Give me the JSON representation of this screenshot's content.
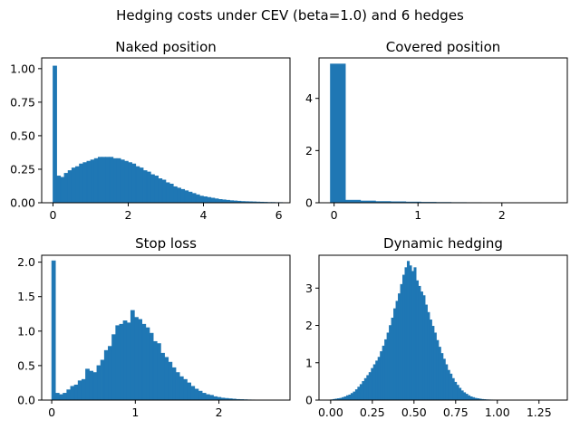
{
  "figure": {
    "title": "Hedging costs under CEV (beta=1.0) and 6 hedges",
    "background": "#ffffff",
    "bar_color": "#1f77b4"
  },
  "chart_data": [
    {
      "type": "bar",
      "title": "Naked position",
      "xlim": [
        -0.3,
        6.3
      ],
      "ylim": [
        0,
        1.08
      ],
      "xticks": [
        0,
        2,
        4,
        6
      ],
      "xtick_labels": [
        "0",
        "2",
        "4",
        "6"
      ],
      "yticks": [
        0,
        0.25,
        0.5,
        0.75,
        1.0
      ],
      "ytick_labels": [
        "0.00",
        "0.25",
        "0.50",
        "0.75",
        "1.00"
      ],
      "bin_start": 0.0,
      "bin_width": 0.1,
      "values": [
        1.02,
        0.2,
        0.19,
        0.22,
        0.24,
        0.26,
        0.27,
        0.29,
        0.3,
        0.31,
        0.32,
        0.33,
        0.34,
        0.34,
        0.34,
        0.34,
        0.33,
        0.33,
        0.32,
        0.31,
        0.3,
        0.29,
        0.27,
        0.26,
        0.24,
        0.23,
        0.21,
        0.2,
        0.18,
        0.17,
        0.15,
        0.14,
        0.12,
        0.11,
        0.1,
        0.09,
        0.08,
        0.07,
        0.06,
        0.05,
        0.045,
        0.04,
        0.035,
        0.03,
        0.025,
        0.022,
        0.019,
        0.016,
        0.014,
        0.012,
        0.01,
        0.009,
        0.008,
        0.007,
        0.006,
        0.005,
        0.004,
        0.003,
        0.003,
        0.002,
        0.002
      ]
    },
    {
      "type": "bar",
      "title": "Covered position",
      "xlim": [
        -0.18,
        2.78
      ],
      "ylim": [
        0,
        5.55
      ],
      "xticks": [
        0,
        1,
        2
      ],
      "xtick_labels": [
        "0",
        "1",
        "2"
      ],
      "yticks": [
        0,
        2,
        4
      ],
      "ytick_labels": [
        "0",
        "2",
        "4"
      ],
      "bin_start": -0.045,
      "bin_width": 0.18,
      "values": [
        5.32,
        0.1,
        0.07,
        0.05,
        0.04,
        0.03,
        0.02,
        0.015,
        0.01,
        0.008,
        0.006,
        0.005,
        0.004,
        0.003,
        0.002
      ]
    },
    {
      "type": "bar",
      "title": "Stop loss",
      "xlim": [
        -0.12,
        2.85
      ],
      "ylim": [
        0,
        2.1
      ],
      "xticks": [
        0,
        1,
        2
      ],
      "xtick_labels": [
        "0",
        "1",
        "2"
      ],
      "yticks": [
        0,
        0.5,
        1.0,
        1.5,
        2.0
      ],
      "ytick_labels": [
        "0.0",
        "0.5",
        "1.0",
        "1.5",
        "2.0"
      ],
      "bin_start": 0.0,
      "bin_width": 0.045,
      "values": [
        2.02,
        0.1,
        0.08,
        0.1,
        0.15,
        0.2,
        0.22,
        0.28,
        0.3,
        0.45,
        0.42,
        0.4,
        0.5,
        0.58,
        0.72,
        0.78,
        0.95,
        1.08,
        1.1,
        1.15,
        1.12,
        1.3,
        1.2,
        1.17,
        1.1,
        1.05,
        0.97,
        0.85,
        0.82,
        0.68,
        0.62,
        0.55,
        0.47,
        0.4,
        0.34,
        0.3,
        0.25,
        0.2,
        0.16,
        0.13,
        0.1,
        0.08,
        0.07,
        0.05,
        0.04,
        0.03,
        0.025,
        0.02,
        0.015,
        0.01,
        0.008,
        0.006,
        0.004,
        0.003,
        0.002,
        0.001
      ]
    },
    {
      "type": "bar",
      "title": "Dynamic hedging",
      "xlim": [
        -0.07,
        1.42
      ],
      "ylim": [
        0,
        3.88
      ],
      "xticks": [
        0,
        0.25,
        0.5,
        0.75,
        1.0,
        1.25
      ],
      "xtick_labels": [
        "0.00",
        "0.25",
        "0.50",
        "0.75",
        "1.00",
        "1.25"
      ],
      "yticks": [
        0,
        1,
        2,
        3
      ],
      "ytick_labels": [
        "0",
        "1",
        "2",
        "3"
      ],
      "bin_start": 0.0,
      "bin_width": 0.0135,
      "values": [
        0.01,
        0.02,
        0.03,
        0.04,
        0.05,
        0.07,
        0.09,
        0.12,
        0.14,
        0.18,
        0.22,
        0.28,
        0.35,
        0.42,
        0.5,
        0.58,
        0.66,
        0.74,
        0.85,
        0.95,
        1.05,
        1.15,
        1.3,
        1.45,
        1.62,
        1.8,
        2.0,
        2.2,
        2.45,
        2.65,
        2.85,
        3.1,
        3.35,
        3.55,
        3.72,
        3.6,
        3.45,
        3.55,
        3.2,
        3.05,
        2.9,
        2.8,
        2.55,
        2.35,
        2.15,
        1.98,
        1.8,
        1.6,
        1.42,
        1.25,
        1.1,
        0.95,
        0.8,
        0.7,
        0.58,
        0.48,
        0.4,
        0.32,
        0.25,
        0.2,
        0.16,
        0.12,
        0.09,
        0.07,
        0.05,
        0.04,
        0.03,
        0.02,
        0.015,
        0.01,
        0.008,
        0.006,
        0.005,
        0.004,
        0.003,
        0.002,
        0.002,
        0.002,
        0.001,
        0.001,
        0.001,
        0.001,
        0.001,
        0.001,
        0.001,
        0.001,
        0.001,
        0.001,
        0.001,
        0.001,
        0.001,
        0.001,
        0.001,
        0.001,
        0.001,
        0.001,
        0.001,
        0.001
      ]
    }
  ]
}
